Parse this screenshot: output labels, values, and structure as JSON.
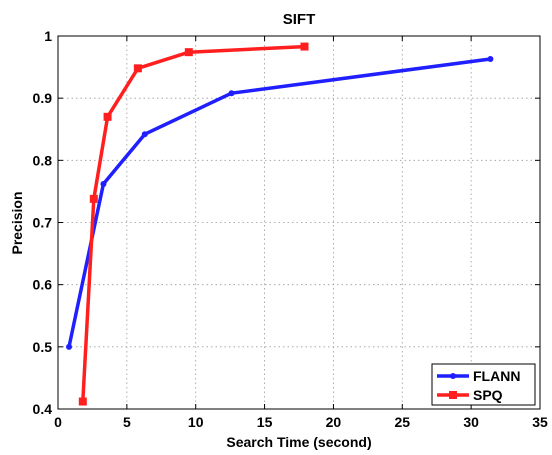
{
  "chart_data": {
    "type": "line",
    "title": "SIFT",
    "xlabel": "Search Time (second)",
    "ylabel": "Precision",
    "xlim": [
      0,
      35
    ],
    "ylim": [
      0.4,
      1.0
    ],
    "xticks": [
      0,
      5,
      10,
      15,
      20,
      25,
      30,
      35
    ],
    "xtick_labels": [
      "0",
      "5",
      "10",
      "15",
      "20",
      "25",
      "30",
      "35"
    ],
    "yticks": [
      0.4,
      0.5,
      0.6,
      0.7,
      0.8,
      0.9,
      1.0
    ],
    "ytick_labels": [
      "0.4",
      "0.5",
      "0.6",
      "0.7",
      "0.8",
      "0.9",
      "1"
    ],
    "grid": true,
    "legend_position": "bottom-right",
    "series": [
      {
        "name": "FLANN",
        "color": "#1f1fff",
        "marker": "circle",
        "x": [
          0.8,
          3.3,
          6.3,
          12.6,
          31.4
        ],
        "y": [
          0.5,
          0.762,
          0.842,
          0.908,
          0.963
        ]
      },
      {
        "name": "SPQ",
        "color": "#ff1f1f",
        "marker": "square",
        "x": [
          1.8,
          2.6,
          3.6,
          5.8,
          9.5,
          17.9
        ],
        "y": [
          0.412,
          0.738,
          0.87,
          0.948,
          0.974,
          0.983
        ]
      }
    ]
  }
}
